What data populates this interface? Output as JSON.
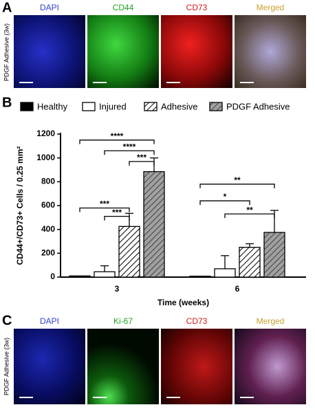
{
  "panel_a": {
    "label": "A",
    "side_label": "PDGF Adhesive (3w)",
    "images": [
      "DAPI",
      "CD44",
      "CD73",
      "Merged"
    ]
  },
  "panel_b": {
    "label": "B"
  },
  "panel_c": {
    "label": "C",
    "side_label": "PDGF Adhesive (3w)",
    "images": [
      "DAPI",
      "Ki-67",
      "CD73",
      "Merged"
    ]
  },
  "chart_data": {
    "type": "bar",
    "x_label": "Time (weeks)",
    "y_label": "CD44+/CD73+ Cells / 0.25 mm²",
    "categories": [
      "3",
      "6"
    ],
    "series": [
      {
        "name": "Healthy",
        "color": "#000000",
        "hatch": false,
        "values": [
          10,
          8
        ],
        "errors": [
          0,
          0
        ]
      },
      {
        "name": "Injured",
        "color": "#ffffff",
        "hatch": false,
        "values": [
          45,
          70
        ],
        "errors": [
          50,
          110
        ]
      },
      {
        "name": "Adhesive",
        "color": "#ffffff",
        "hatch": true,
        "values": [
          425,
          250
        ],
        "errors": [
          110,
          30
        ]
      },
      {
        "name": "PDGF Adhesive",
        "color": "#a0a0a0",
        "hatch": true,
        "values": [
          885,
          375
        ],
        "errors": [
          115,
          185
        ]
      }
    ],
    "ylim": [
      0,
      1200
    ],
    "yticks": [
      0,
      200,
      400,
      600,
      800,
      1000,
      1200
    ],
    "annotations": [
      "****",
      "****",
      "***",
      "***",
      "***",
      "**",
      "*",
      "**"
    ]
  }
}
